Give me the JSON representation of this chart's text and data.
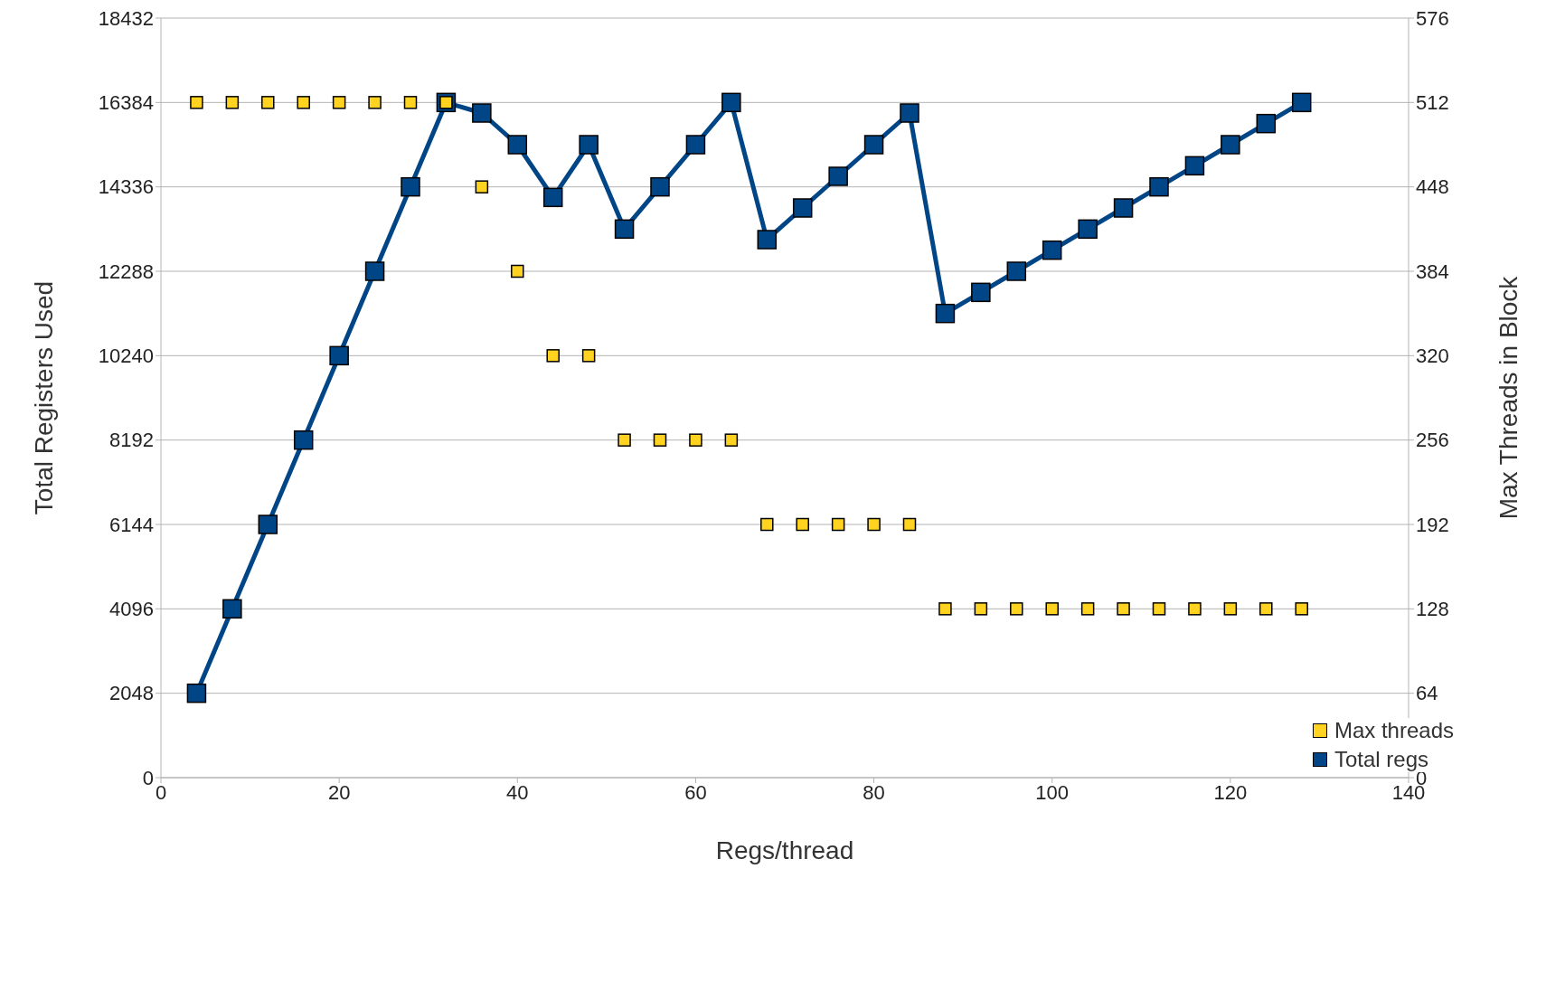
{
  "chart_data": {
    "type": "scatter",
    "xlabel": "Regs/thread",
    "ylabel": "Total Registers Used",
    "y2label": "Max Threads in Block",
    "x": [
      4,
      8,
      12,
      16,
      20,
      24,
      28,
      32,
      36,
      40,
      44,
      48,
      52,
      56,
      60,
      64,
      68,
      72,
      76,
      80,
      84,
      88,
      92,
      96,
      100,
      104,
      108,
      112,
      116,
      120,
      124,
      128
    ],
    "series": [
      {
        "name": "Max threads",
        "axis": "y2",
        "color": "#ffd320",
        "values": [
          512,
          512,
          512,
          512,
          512,
          512,
          512,
          512,
          448,
          384,
          320,
          320,
          256,
          256,
          256,
          256,
          192,
          192,
          192,
          192,
          192,
          128,
          128,
          128,
          128,
          128,
          128,
          128,
          128,
          128,
          128,
          128
        ]
      },
      {
        "name": "Total regs",
        "type": "line",
        "color": "#004586",
        "values": [
          2048,
          4096,
          6144,
          8192,
          10240,
          12288,
          14336,
          16384,
          16128,
          15360,
          14080,
          15360,
          13312,
          14336,
          15360,
          16384,
          13056,
          13824,
          14592,
          15360,
          16128,
          11264,
          11776,
          12288,
          12800,
          13312,
          13824,
          14336,
          14848,
          15360,
          15872,
          16384
        ]
      }
    ],
    "xlim": [
      0,
      140
    ],
    "xticks": [
      0,
      20,
      40,
      60,
      80,
      100,
      120,
      140
    ],
    "ylim": [
      0,
      18432
    ],
    "yticks": [
      0,
      2048,
      4096,
      6144,
      8192,
      10240,
      12288,
      14336,
      16384,
      18432
    ],
    "y2lim": [
      0,
      576
    ],
    "y2ticks": [
      0,
      64,
      128,
      192,
      256,
      320,
      384,
      448,
      512,
      576
    ],
    "grid": "y",
    "legend": "bottom right",
    "marker": "square",
    "line_style": "solid"
  }
}
